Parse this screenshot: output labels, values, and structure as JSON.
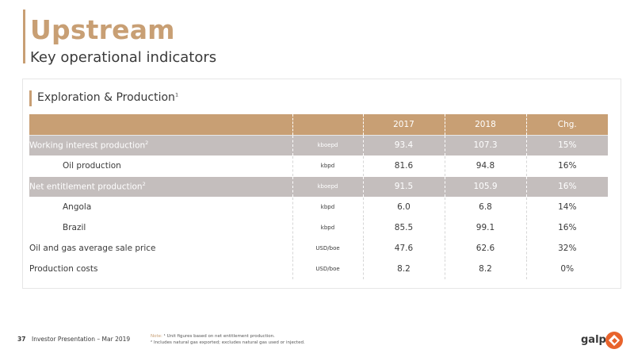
{
  "header": {
    "title": "Upstream",
    "subtitle": "Key operational indicators"
  },
  "section": {
    "title": "Exploration & Production",
    "title_sup": "1"
  },
  "table": {
    "columns": [
      "",
      "",
      "2017",
      "2018",
      "Chg."
    ],
    "rows": [
      {
        "label": "Working interest production",
        "sup": "2",
        "unit": "kboepd",
        "v2017": "93.4",
        "v2018": "107.3",
        "chg": "15%",
        "style": "gray",
        "indent": false
      },
      {
        "label": "Oil production",
        "sup": "",
        "unit": "kbpd",
        "v2017": "81.6",
        "v2018": "94.8",
        "chg": "16%",
        "style": "white",
        "indent": true
      },
      {
        "label": "Net entitlement production",
        "sup": "2",
        "unit": "kboepd",
        "v2017": "91.5",
        "v2018": "105.9",
        "chg": "16%",
        "style": "gray",
        "indent": false
      },
      {
        "label": "Angola",
        "sup": "",
        "unit": "kbpd",
        "v2017": "6.0",
        "v2018": "6.8",
        "chg": "14%",
        "style": "white",
        "indent": true
      },
      {
        "label": "Brazil",
        "sup": "",
        "unit": "kbpd",
        "v2017": "85.5",
        "v2018": "99.1",
        "chg": "16%",
        "style": "white",
        "indent": true
      },
      {
        "label": "Oil and gas average sale price",
        "sup": "",
        "unit": "USD/boe",
        "v2017": "47.6",
        "v2018": "62.6",
        "chg": "32%",
        "style": "white",
        "indent": false
      },
      {
        "label": "Production costs",
        "sup": "",
        "unit": "USD/boe",
        "v2017": "8.2",
        "v2018": "8.2",
        "chg": "0%",
        "style": "white",
        "indent": false
      }
    ]
  },
  "footer": {
    "page_number": "37",
    "text": "Investor Presentation – Mar 2019",
    "note_label": "Note:",
    "note_line1": "¹ Unit figures based on net entitlement production.",
    "note_line2": "² Includes natural gas exported; excludes natural gas used or injected."
  },
  "logo": {
    "text": "galp",
    "color": "#e8632c"
  },
  "colors": {
    "accent": "#c89f74",
    "row_gray": "#c4bebd",
    "text": "#3a3a3a"
  }
}
